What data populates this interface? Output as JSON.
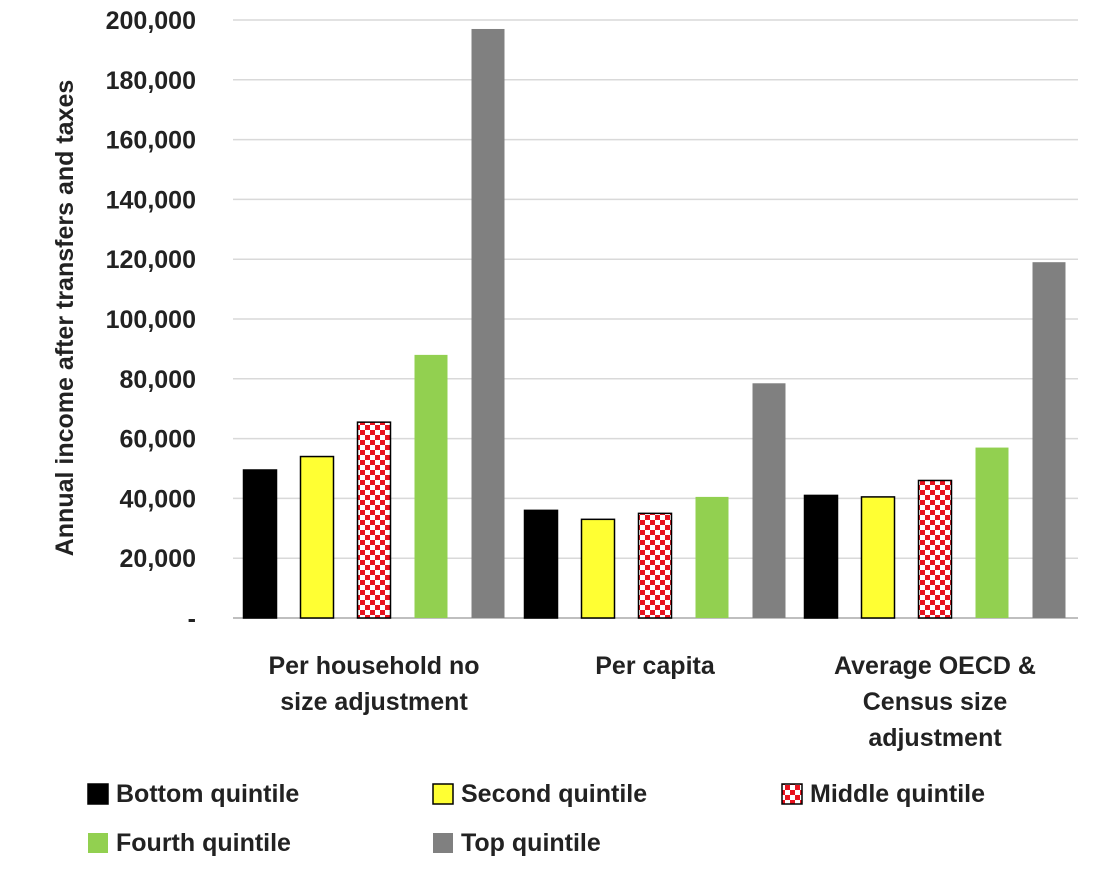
{
  "chart_data": {
    "type": "bar",
    "title": "",
    "xlabel": "",
    "ylabel": "Annual income after transfers and taxes",
    "ylim": [
      0,
      200000
    ],
    "yticks": [
      "-",
      "20,000",
      "40,000",
      "60,000",
      "80,000",
      "100,000",
      "120,000",
      "140,000",
      "160,000",
      "180,000",
      "200,000"
    ],
    "grid": true,
    "legend_position": "bottom",
    "categories": [
      [
        "Per household no",
        "size adjustment"
      ],
      [
        "Per capita"
      ],
      [
        "Average OECD &",
        "Census size",
        "adjustment"
      ]
    ],
    "series": [
      {
        "name": "Bottom quintile",
        "values": [
          49500,
          36000,
          41000
        ],
        "color": "#000000",
        "pattern": "solid"
      },
      {
        "name": "Second quintile",
        "values": [
          54000,
          33000,
          40500
        ],
        "color": "#ffff33",
        "pattern": "solid"
      },
      {
        "name": "Middle quintile",
        "values": [
          65500,
          35000,
          46000
        ],
        "color": "#e8121e",
        "pattern": "checker"
      },
      {
        "name": "Fourth quintile",
        "values": [
          88000,
          40500,
          57000
        ],
        "color": "#92d050",
        "pattern": "solid"
      },
      {
        "name": "Top quintile",
        "values": [
          197000,
          78500,
          119000
        ],
        "color": "#808080",
        "pattern": "solid"
      }
    ]
  }
}
